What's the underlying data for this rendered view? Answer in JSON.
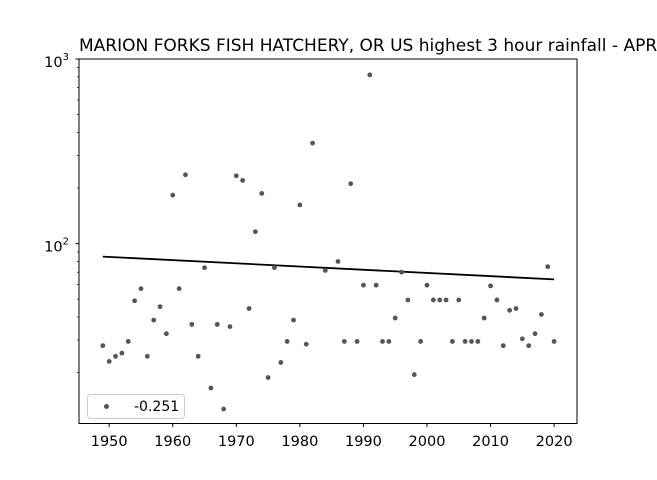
{
  "chart_data": {
    "type": "scatter",
    "title": "MARION FORKS FISH HATCHERY, OR US highest 3 hour rainfall - APR",
    "xlabel": "",
    "ylabel": "",
    "grid": false,
    "x_axis": {
      "min": 1945.25,
      "max": 2023.6,
      "ticks": [
        1950,
        1960,
        1970,
        1980,
        1990,
        2000,
        2010,
        2020
      ]
    },
    "y_axis": {
      "scale": "log",
      "min": 10.6,
      "max": 1000,
      "major_ticks": [
        {
          "value": 100,
          "base": "10",
          "exponent": "2"
        },
        {
          "value": 1000,
          "base": "10",
          "exponent": "3"
        }
      ],
      "minor_ticks": [
        20,
        30,
        40,
        50,
        60,
        70,
        80,
        90,
        200,
        300,
        400,
        500,
        600,
        700,
        800,
        900
      ]
    },
    "points": [
      [
        1949,
        28
      ],
      [
        1950,
        23
      ],
      [
        1951,
        24.5
      ],
      [
        1952,
        25.5
      ],
      [
        1953,
        29.5
      ],
      [
        1954,
        49
      ],
      [
        1955,
        57
      ],
      [
        1956,
        24.5
      ],
      [
        1957,
        38.5
      ],
      [
        1958,
        45.5
      ],
      [
        1959,
        32.5
      ],
      [
        1960,
        183
      ],
      [
        1961,
        57
      ],
      [
        1962,
        236
      ],
      [
        1963,
        36.5
      ],
      [
        1964,
        24.5
      ],
      [
        1965,
        74
      ],
      [
        1966,
        16.5
      ],
      [
        1967,
        36.5
      ],
      [
        1968,
        12.7
      ],
      [
        1969,
        35.5
      ],
      [
        1970,
        233
      ],
      [
        1971,
        220
      ],
      [
        1972,
        44.5
      ],
      [
        1973,
        116
      ],
      [
        1974,
        187
      ],
      [
        1975,
        18.8
      ],
      [
        1976,
        74
      ],
      [
        1977,
        22.7
      ],
      [
        1978,
        29.5
      ],
      [
        1979,
        38.5
      ],
      [
        1980,
        162
      ],
      [
        1981,
        28.5
      ],
      [
        1982,
        350
      ],
      [
        1984,
        71.5
      ],
      [
        1986,
        80
      ],
      [
        1987,
        29.5
      ],
      [
        1988,
        211
      ],
      [
        1989,
        29.5
      ],
      [
        1990,
        59.5
      ],
      [
        1991,
        820
      ],
      [
        1992,
        59.5
      ],
      [
        1993,
        29.5
      ],
      [
        1994,
        29.5
      ],
      [
        1995,
        39.5
      ],
      [
        1996,
        70
      ],
      [
        1997,
        49.5
      ],
      [
        1998,
        19.5
      ],
      [
        1999,
        29.5
      ],
      [
        2000,
        59.5
      ],
      [
        2001,
        49.5
      ],
      [
        2002,
        49.5
      ],
      [
        2003,
        49.5
      ],
      [
        2004,
        29.5
      ],
      [
        2005,
        49.5
      ],
      [
        2006,
        29.5
      ],
      [
        2007,
        29.5
      ],
      [
        2008,
        29.5
      ],
      [
        2009,
        39.5
      ],
      [
        2010,
        59
      ],
      [
        2011,
        49.5
      ],
      [
        2012,
        28
      ],
      [
        2013,
        43.5
      ],
      [
        2014,
        44.5
      ],
      [
        2015,
        30.5
      ],
      [
        2016,
        28
      ],
      [
        2017,
        32.5
      ],
      [
        2018,
        41.3
      ],
      [
        2019,
        75
      ],
      [
        2020,
        29.5
      ]
    ],
    "trend_line": {
      "x": [
        1949,
        2020
      ],
      "y": [
        85,
        64
      ],
      "color": "#000000"
    },
    "marker": {
      "color": "#555555",
      "radius": 2.4
    },
    "legend": {
      "label": "-0.251",
      "location": "lower-left"
    },
    "colors": {
      "axis": "#000000",
      "text": "#000000",
      "background": "#ffffff"
    }
  }
}
